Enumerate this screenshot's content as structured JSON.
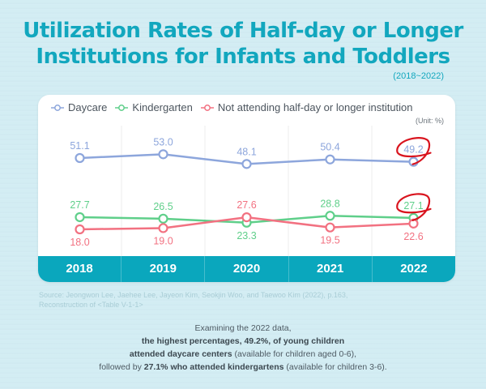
{
  "title_line1": "Utilization Rates of Half-day or Longer",
  "title_line2": "Institutions for Infants and Toddlers",
  "period": "(2018~2022)",
  "unit": "(Unit: %)",
  "colors": {
    "daycare": "#8da6dc",
    "kindergarten": "#5fcf8a",
    "not_attending": "#f27181",
    "highlight": "#d9141e",
    "accent": "#0aa7bd"
  },
  "source_line1": "Source: Jeongwon Lee, Jaehee Lee, Jayeon Kim, Seokjin Woo, and Taewoo Kim (2022), p.163,",
  "source_line2": "Reconstruction of <Table V-1-1>",
  "caption": {
    "line1": "Examining the 2022 data,",
    "line2_bold": "the highest percentages, 49.2%, of young children",
    "line3_bold": "attended daycare centers",
    "line3_rest": " (available for children aged 0-6),",
    "line4_pre": "followed by ",
    "line4_bold": "27.1% who attended kindergartens",
    "line4_rest": " (available for children 3-6)."
  },
  "chart_data": {
    "type": "line",
    "title": "Utilization Rates of Half-day or Longer Institutions for Infants and Toddlers (2018~2022)",
    "xlabel": "",
    "ylabel": "",
    "unit": "%",
    "categories": [
      "2018",
      "2019",
      "2020",
      "2021",
      "2022"
    ],
    "legend_position": "top-left",
    "grid": "vertical",
    "series": [
      {
        "key": "daycare",
        "name": "Daycare",
        "values": [
          51.1,
          53.0,
          48.1,
          50.4,
          49.2
        ]
      },
      {
        "key": "kindergarten",
        "name": "Kindergarten",
        "values": [
          27.7,
          26.5,
          23.3,
          28.8,
          27.1
        ]
      },
      {
        "key": "not_attending",
        "name": "Not attending half-day or longer institution",
        "values": [
          18.0,
          19.0,
          27.6,
          19.5,
          22.6
        ]
      }
    ],
    "highlighted": [
      {
        "series": "daycare",
        "category": "2022",
        "value": 49.2
      },
      {
        "series": "kindergarten",
        "category": "2022",
        "value": 27.1
      }
    ]
  }
}
